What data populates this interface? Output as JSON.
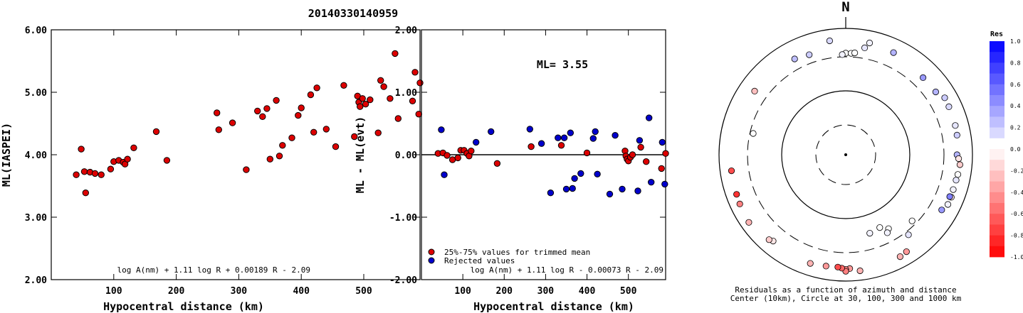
{
  "title": "20140330140959",
  "chart_data": [
    {
      "type": "scatter",
      "id": "ml-vs-distance",
      "xlabel": "Hypocentral distance (km)",
      "ylabel": "ML(IASPEI)",
      "xlim": [
        0,
        590
      ],
      "ylim": [
        2.0,
        6.0
      ],
      "x_ticks": [
        "100",
        "200",
        "300",
        "400",
        "500"
      ],
      "y_ticks": [
        "2.00",
        "3.00",
        "4.00",
        "5.00",
        "6.00"
      ],
      "formula": "log A(nm) + 1.11 log R + 0.00189 R - 2.09",
      "point_color": "#dd0000",
      "points": [
        [
          40,
          3.68
        ],
        [
          48,
          4.09
        ],
        [
          53,
          3.73
        ],
        [
          55,
          3.39
        ],
        [
          62,
          3.72
        ],
        [
          70,
          3.7
        ],
        [
          80,
          3.68
        ],
        [
          95,
          3.77
        ],
        [
          100,
          3.89
        ],
        [
          108,
          3.91
        ],
        [
          115,
          3.88
        ],
        [
          118,
          3.85
        ],
        [
          122,
          3.93
        ],
        [
          132,
          4.11
        ],
        [
          168,
          4.37
        ],
        [
          185,
          3.91
        ],
        [
          265,
          4.67
        ],
        [
          268,
          4.4
        ],
        [
          290,
          4.51
        ],
        [
          312,
          3.76
        ],
        [
          330,
          4.7
        ],
        [
          338,
          4.61
        ],
        [
          345,
          4.74
        ],
        [
          350,
          3.93
        ],
        [
          360,
          4.87
        ],
        [
          365,
          3.98
        ],
        [
          370,
          4.15
        ],
        [
          385,
          4.27
        ],
        [
          395,
          4.63
        ],
        [
          400,
          4.75
        ],
        [
          415,
          4.96
        ],
        [
          420,
          4.36
        ],
        [
          425,
          5.07
        ],
        [
          440,
          4.41
        ],
        [
          455,
          4.13
        ],
        [
          468,
          5.11
        ],
        [
          485,
          4.29
        ],
        [
          490,
          4.94
        ],
        [
          492,
          4.84
        ],
        [
          494,
          4.77
        ],
        [
          498,
          4.9
        ],
        [
          503,
          4.81
        ],
        [
          510,
          4.88
        ],
        [
          523,
          4.35
        ],
        [
          527,
          5.19
        ],
        [
          532,
          5.09
        ],
        [
          542,
          4.9
        ],
        [
          550,
          5.62
        ],
        [
          555,
          4.58
        ],
        [
          578,
          4.86
        ],
        [
          582,
          5.32
        ],
        [
          588,
          4.65
        ],
        [
          590,
          5.15
        ]
      ]
    },
    {
      "type": "scatter",
      "id": "residual-vs-distance",
      "xlabel": "Hypocentral distance (km)",
      "ylabel": "ML - ML(evt)",
      "xlim": [
        0,
        590
      ],
      "ylim": [
        -2.0,
        2.0
      ],
      "x_ticks": [
        "100",
        "200",
        "300",
        "400",
        "500"
      ],
      "y_ticks": [
        "-2.00",
        "-1.00",
        "0.00",
        "1.00",
        "2.00"
      ],
      "annotation": "ML= 3.55",
      "formula": "log A(nm) + 1.11 log R - 0.00073 R - 2.09",
      "legend": [
        {
          "label": "25%-75% values for trimmed mean",
          "color": "#dd0000"
        },
        {
          "label": "Rejected values",
          "color": "#0000cc"
        }
      ],
      "series": [
        {
          "name": "25%-75% values for trimmed mean",
          "color": "#dd0000",
          "points": [
            [
              40,
              0.02
            ],
            [
              52,
              0.03
            ],
            [
              62,
              -0.01
            ],
            [
              75,
              -0.08
            ],
            [
              88,
              -0.05
            ],
            [
              95,
              0.07
            ],
            [
              103,
              0.07
            ],
            [
              110,
              0.02
            ],
            [
              115,
              -0.02
            ],
            [
              120,
              0.06
            ],
            [
              183,
              -0.14
            ],
            [
              265,
              0.13
            ],
            [
              338,
              0.15
            ],
            [
              400,
              0.03
            ],
            [
              492,
              0.06
            ],
            [
              494,
              -0.02
            ],
            [
              497,
              -0.07
            ],
            [
              500,
              -0.1
            ],
            [
              505,
              -0.04
            ],
            [
              510,
              0.0
            ],
            [
              530,
              0.12
            ],
            [
              543,
              -0.11
            ],
            [
              580,
              -0.22
            ],
            [
              590,
              0.02
            ]
          ]
        },
        {
          "name": "Rejected values",
          "color": "#0000cc",
          "points": [
            [
              48,
              0.4
            ],
            [
              55,
              -0.32
            ],
            [
              132,
              0.2
            ],
            [
              168,
              0.37
            ],
            [
              262,
              0.41
            ],
            [
              290,
              0.18
            ],
            [
              312,
              -0.61
            ],
            [
              330,
              0.27
            ],
            [
              345,
              0.27
            ],
            [
              350,
              -0.55
            ],
            [
              360,
              0.35
            ],
            [
              365,
              -0.54
            ],
            [
              370,
              -0.38
            ],
            [
              385,
              -0.3
            ],
            [
              415,
              0.26
            ],
            [
              420,
              0.37
            ],
            [
              425,
              -0.31
            ],
            [
              455,
              -0.63
            ],
            [
              468,
              0.31
            ],
            [
              485,
              -0.55
            ],
            [
              523,
              -0.58
            ],
            [
              527,
              0.23
            ],
            [
              550,
              0.59
            ],
            [
              555,
              -0.44
            ],
            [
              582,
              0.2
            ],
            [
              588,
              -0.47
            ]
          ]
        }
      ]
    },
    {
      "type": "scatter",
      "id": "azimuth-residual-polar",
      "north_label": "N",
      "caption_line1": "Residuals as a function of azimuth and distance",
      "caption_line2": "Center (10km), Circle at 30, 100, 300 and 1000 km",
      "colorbar_title": "Res",
      "colorbar_ticks": [
        "1.0",
        "0.8",
        "0.6",
        "0.4",
        "0.2",
        "0.0",
        "-0.2",
        "-0.4",
        "-0.6",
        "-0.8",
        "-1.0"
      ],
      "points_azimuth_deg_distance_km_residual": [
        [
          12,
          600,
          0.05
        ],
        [
          352,
          620,
          0.15
        ],
        [
          10,
          470,
          0.1
        ],
        [
          25,
          560,
          0.3
        ],
        [
          0,
          350,
          0.0
        ],
        [
          358,
          330,
          0.05
        ],
        [
          3,
          350,
          0.0
        ],
        [
          5,
          360,
          0.0
        ],
        [
          340,
          430,
          0.2
        ],
        [
          332,
          470,
          0.25
        ],
        [
          305,
          520,
          -0.25
        ],
        [
          283,
          270,
          0.0
        ],
        [
          45,
          480,
          0.4
        ],
        [
          55,
          490,
          0.3
        ],
        [
          60,
          590,
          0.2
        ],
        [
          65,
          580,
          0.15
        ],
        [
          75,
          570,
          0.1
        ],
        [
          80,
          560,
          0.2
        ],
        [
          90,
          520,
          0.3
        ],
        [
          95,
          600,
          -0.2
        ],
        [
          92,
          560,
          -0.1
        ],
        [
          100,
          580,
          0.0
        ],
        [
          103,
          565,
          0.1
        ],
        [
          108,
          560,
          0.05
        ],
        [
          112,
          580,
          -0.1
        ],
        [
          116,
          575,
          0.05
        ],
        [
          112,
          540,
          0.5
        ],
        [
          120,
          510,
          0.4
        ],
        [
          155,
          170,
          0.0
        ],
        [
          163,
          180,
          0.05
        ],
        [
          150,
          200,
          0.0
        ],
        [
          135,
          260,
          0.0
        ],
        [
          152,
          220,
          0.05
        ],
        [
          142,
          350,
          0.1
        ],
        [
          173,
          670,
          -0.3
        ],
        [
          178,
          590,
          -0.4
        ],
        [
          180,
          610,
          -0.5
        ],
        [
          180,
          660,
          -0.5
        ],
        [
          182,
          580,
          -0.6
        ],
        [
          184,
          560,
          -0.7
        ],
        [
          190,
          570,
          -0.4
        ],
        [
          198,
          600,
          -0.3
        ],
        [
          148,
          600,
          -0.4
        ],
        [
          152,
          630,
          -0.3
        ],
        [
          220,
          560,
          -0.1
        ],
        [
          222,
          600,
          -0.2
        ],
        [
          235,
          700,
          -0.3
        ],
        [
          245,
          660,
          -0.5
        ],
        [
          250,
          640,
          -0.8
        ],
        [
          262,
          620,
          -0.7
        ]
      ]
    }
  ]
}
